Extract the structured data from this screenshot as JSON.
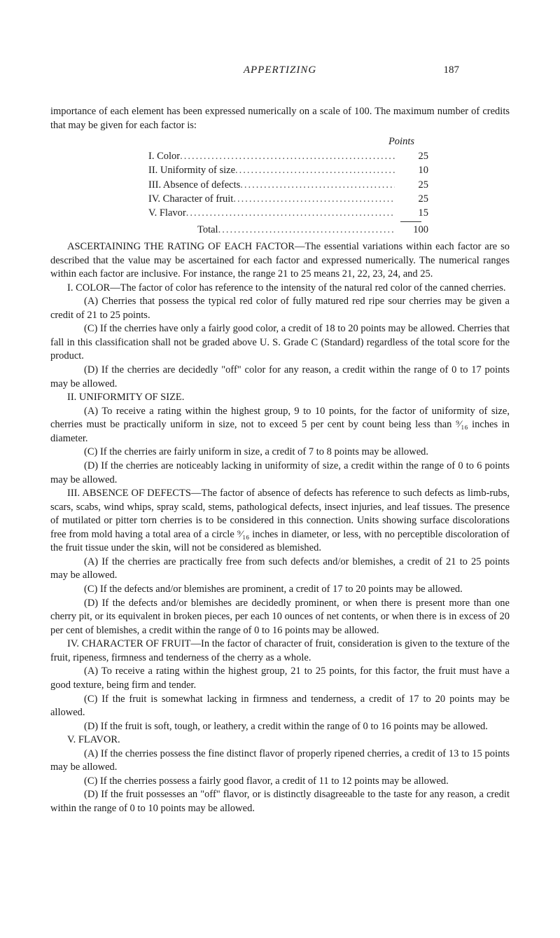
{
  "header": {
    "title": "APPERTIZING",
    "pageNumber": "187"
  },
  "intro": {
    "line1": "importance of each element has been expressed numerically on a scale of 100. The",
    "line2": "maximum number of credits that may be given for each factor is:"
  },
  "pointsTable": {
    "header": "Points",
    "rows": [
      {
        "label": "I. Color",
        "value": "25"
      },
      {
        "label": "II. Uniformity of size",
        "value": "10"
      },
      {
        "label": "III. Absence of defects",
        "value": "25"
      },
      {
        "label": "IV. Character of fruit",
        "value": "25"
      },
      {
        "label": "V. Flavor",
        "value": "15"
      }
    ],
    "total": {
      "label": "Total",
      "value": "100"
    }
  },
  "ascertaining": {
    "p1": "ASCERTAINING THE RATING OF EACH FACTOR—The essential variations within each factor are so described that the value may be ascertained for each factor and expressed numerically. The numerical ranges within each factor are inclusive. For instance, the range 21 to 25 means 21, 22, 23, 24, and 25."
  },
  "sectionI": {
    "head": "I. COLOR—The factor of color has reference to the intensity of the natural red color of the canned cherries.",
    "A": "(A) Cherries that possess the typical red color of fully matured red ripe sour cherries may be given a credit of 21 to 25 points.",
    "C": "(C) If the cherries have only a fairly good color, a credit of 18 to 20 points may be allowed. Cherries that fall in this classification shall not be graded above U. S. Grade C (Standard) regardless of the total score for the product.",
    "D": "(D) If the cherries are decidedly \"off\" color for any reason, a credit within the range of 0 to 17 points may be allowed."
  },
  "sectionII": {
    "head": "II. UNIFORMITY OF SIZE.",
    "A": "(A) To receive a rating within the highest group, 9 to 10 points, for the factor of uniformity of size, cherries must be practically uniform in size, not to exceed 5 per cent by count being less than ⁹⁄₁₆ inches in diameter.",
    "C": "(C) If the cherries are fairly uniform in size, a credit of 7 to 8 points may be allowed.",
    "D": "(D) If the cherries are noticeably lacking in uniformity of size, a credit within the range of 0 to 6 points may be allowed."
  },
  "sectionIII": {
    "head": "III. ABSENCE OF DEFECTS—The factor of absence of defects has reference to such defects as limb-rubs, scars, scabs, wind whips, spray scald, stems, pathological defects, insect injuries, and leaf tissues. The presence of mutilated or pitter torn cherries is to be considered in this connection. Units showing surface discolorations free from mold having a total area of a circle ⁹⁄₁₆ inches in diameter, or less, with no perceptible discoloration of the fruit tissue under the skin, will not be considered as blemished.",
    "A": "(A) If the cherries are practically free from such defects and/or blemishes, a credit of 21 to 25 points may be allowed.",
    "C": "(C) If the defects and/or blemishes are prominent, a credit of 17 to 20 points may be allowed.",
    "D": "(D) If the defects and/or blemishes are decidedly prominent, or when there is present more than one cherry pit, or its equivalent in broken pieces, per each 10 ounces of net contents, or when there is in excess of 20 per cent of blemishes, a credit within the range of 0 to 16 points may be allowed."
  },
  "sectionIV": {
    "head": "IV. CHARACTER OF FRUIT—In the factor of character of fruit, consideration is given to the texture of the fruit, ripeness, firmness and tenderness of the cherry as a whole.",
    "A": "(A) To receive a rating within the highest group, 21 to 25 points, for this factor, the fruit must have a good texture, being firm and tender.",
    "C": "(C) If the fruit is somewhat lacking in firmness and tenderness, a credit of 17 to 20 points may be allowed.",
    "D": "(D) If the fruit is soft, tough, or leathery, a credit within the range of 0 to 16 points may be allowed."
  },
  "sectionV": {
    "head": "V. FLAVOR.",
    "A": "(A) If the cherries possess the fine distinct flavor of properly ripened cherries, a credit of 13 to 15 points may be allowed.",
    "C": "(C) If the cherries possess a fairly good flavor, a credit of 11 to 12 points may be allowed.",
    "D": "(D) If the fruit possesses an \"off\" flavor, or is distinctly disagreeable to the taste for any reason, a credit within the range of 0 to 10 points may be allowed."
  }
}
